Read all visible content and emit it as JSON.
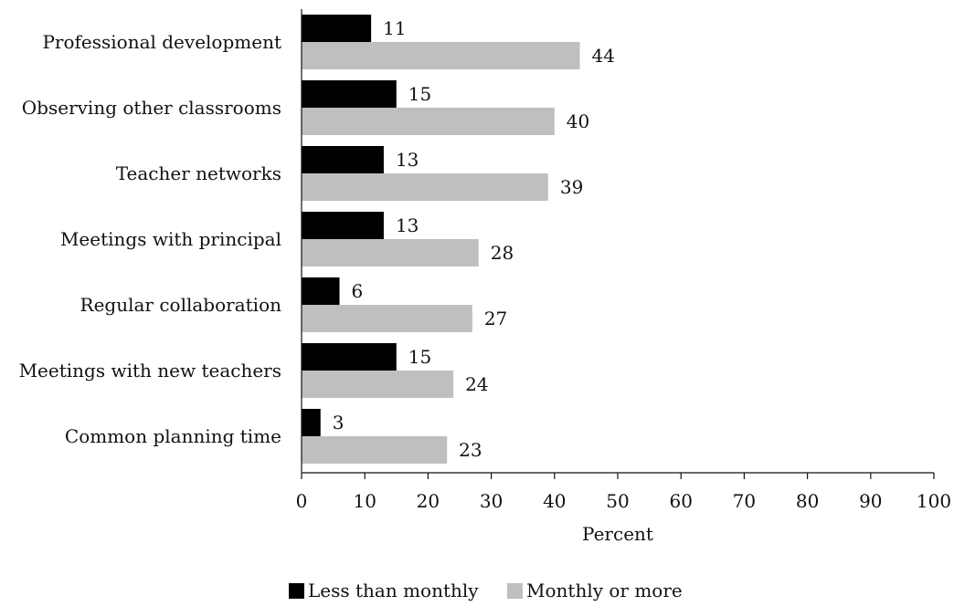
{
  "chart_data": {
    "type": "bar",
    "orientation": "horizontal",
    "categories": [
      "Professional development",
      "Observing other classrooms",
      "Teacher networks",
      "Meetings with principal",
      "Regular collaboration",
      "Meetings with new teachers",
      "Common planning time"
    ],
    "series": [
      {
        "name": "Less than monthly",
        "color": "#000000",
        "values": [
          11,
          15,
          13,
          13,
          6,
          15,
          3
        ]
      },
      {
        "name": "Monthly or more",
        "color": "#bfbfbf",
        "values": [
          44,
          40,
          39,
          28,
          27,
          24,
          23
        ]
      }
    ],
    "xlabel": "Percent",
    "ylabel": "",
    "xlim": [
      0,
      100
    ],
    "xticks": [
      0,
      10,
      20,
      30,
      40,
      50,
      60,
      70,
      80,
      90,
      100
    ],
    "grid": false,
    "legend_position": "bottom",
    "data_labels": true
  }
}
